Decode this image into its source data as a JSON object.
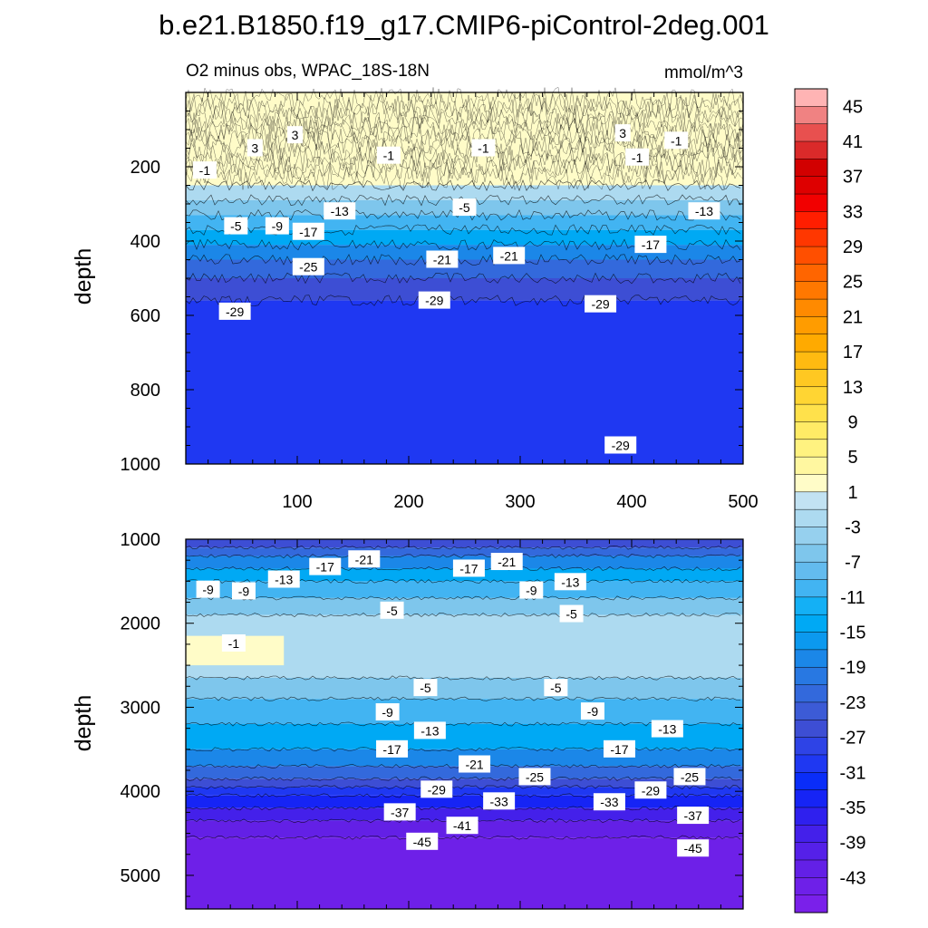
{
  "title": "b.e21.B1850.f19_g17.CMIP6-piControl-2deg.001",
  "chart_data": {
    "type": "heatmap",
    "subtitle_left": "O2 minus obs, WPAC_18S-18N",
    "units": "mmol/m^3",
    "xlabel": "",
    "ylabel": "depth",
    "xlim": [
      0,
      500
    ],
    "x_ticks": [
      100,
      200,
      300,
      400,
      500
    ],
    "panels": [
      {
        "name": "upper",
        "ylim": [
          0,
          1000
        ],
        "y_ticks": [
          200,
          400,
          600,
          800,
          1000
        ],
        "show_x_tick_labels": true,
        "bands": [
          {
            "top": 0,
            "bottom": 250,
            "value": 1
          },
          {
            "top": 250,
            "bottom": 290,
            "value": -3
          },
          {
            "top": 290,
            "bottom": 330,
            "value": -7
          },
          {
            "top": 330,
            "bottom": 370,
            "value": -11
          },
          {
            "top": 370,
            "bottom": 410,
            "value": -15
          },
          {
            "top": 410,
            "bottom": 450,
            "value": -19
          },
          {
            "top": 450,
            "bottom": 500,
            "value": -23
          },
          {
            "top": 500,
            "bottom": 560,
            "value": -27
          },
          {
            "top": 560,
            "bottom": 1000,
            "value": -31
          }
        ],
        "contour_labels": [
          {
            "x": 62,
            "y": 150,
            "text": "3"
          },
          {
            "x": 98,
            "y": 115,
            "text": "3"
          },
          {
            "x": 182,
            "y": 170,
            "text": "-1"
          },
          {
            "x": 267,
            "y": 150,
            "text": "-1"
          },
          {
            "x": 392,
            "y": 110,
            "text": "3"
          },
          {
            "x": 405,
            "y": 175,
            "text": "-1"
          },
          {
            "x": 440,
            "y": 130,
            "text": "-1"
          },
          {
            "x": 17,
            "y": 210,
            "text": "-1"
          },
          {
            "x": 45,
            "y": 360,
            "text": "-5"
          },
          {
            "x": 82,
            "y": 360,
            "text": "-9"
          },
          {
            "x": 110,
            "y": 375,
            "text": "-17"
          },
          {
            "x": 138,
            "y": 320,
            "text": "-13"
          },
          {
            "x": 110,
            "y": 470,
            "text": "-25"
          },
          {
            "x": 230,
            "y": 450,
            "text": "-21"
          },
          {
            "x": 250,
            "y": 310,
            "text": "-5"
          },
          {
            "x": 290,
            "y": 440,
            "text": "-21"
          },
          {
            "x": 372,
            "y": 570,
            "text": "-29"
          },
          {
            "x": 417,
            "y": 410,
            "text": "-17"
          },
          {
            "x": 465,
            "y": 320,
            "text": "-13"
          },
          {
            "x": 390,
            "y": 950,
            "text": "-29"
          },
          {
            "x": 223,
            "y": 560,
            "text": "-29"
          },
          {
            "x": 44,
            "y": 590,
            "text": "-29"
          }
        ]
      },
      {
        "name": "lower",
        "ylim": [
          1000,
          5400
        ],
        "y_ticks": [
          1000,
          2000,
          3000,
          4000,
          5000
        ],
        "show_x_tick_labels": false,
        "bands": [
          {
            "top": 1000,
            "bottom": 1100,
            "value": -27
          },
          {
            "top": 1100,
            "bottom": 1200,
            "value": -23
          },
          {
            "top": 1200,
            "bottom": 1350,
            "value": -19
          },
          {
            "top": 1350,
            "bottom": 1500,
            "value": -15
          },
          {
            "top": 1500,
            "bottom": 1700,
            "value": -11
          },
          {
            "top": 1700,
            "bottom": 1900,
            "value": -7
          },
          {
            "top": 1900,
            "bottom": 2650,
            "value": -3
          },
          {
            "top": 2650,
            "bottom": 2900,
            "value": -7
          },
          {
            "top": 2900,
            "bottom": 3200,
            "value": -11
          },
          {
            "top": 3200,
            "bottom": 3500,
            "value": -15
          },
          {
            "top": 3500,
            "bottom": 3700,
            "value": -19
          },
          {
            "top": 3700,
            "bottom": 3850,
            "value": -23
          },
          {
            "top": 3850,
            "bottom": 3950,
            "value": -27
          },
          {
            "top": 3950,
            "bottom": 4050,
            "value": -31
          },
          {
            "top": 4050,
            "bottom": 4200,
            "value": -35
          },
          {
            "top": 4200,
            "bottom": 4350,
            "value": -39
          },
          {
            "top": 4350,
            "bottom": 4550,
            "value": -43
          },
          {
            "top": 4550,
            "bottom": 5400,
            "value": -45
          }
        ],
        "patches": [
          {
            "x0": 0,
            "x1": 88,
            "top": 2150,
            "bottom": 2500,
            "value": 1
          }
        ],
        "contour_labels": [
          {
            "x": 20,
            "y": 1600,
            "text": "-9"
          },
          {
            "x": 52,
            "y": 1620,
            "text": "-9"
          },
          {
            "x": 88,
            "y": 1480,
            "text": "-13"
          },
          {
            "x": 125,
            "y": 1330,
            "text": "-17"
          },
          {
            "x": 160,
            "y": 1240,
            "text": "-21"
          },
          {
            "x": 254,
            "y": 1350,
            "text": "-17"
          },
          {
            "x": 288,
            "y": 1270,
            "text": "-21"
          },
          {
            "x": 345,
            "y": 1510,
            "text": "-13"
          },
          {
            "x": 310,
            "y": 1610,
            "text": "-9"
          },
          {
            "x": 185,
            "y": 1850,
            "text": "-5"
          },
          {
            "x": 346,
            "y": 1890,
            "text": "-5"
          },
          {
            "x": 43,
            "y": 2240,
            "text": "-1"
          },
          {
            "x": 215,
            "y": 2770,
            "text": "-5"
          },
          {
            "x": 332,
            "y": 2770,
            "text": "-5"
          },
          {
            "x": 181,
            "y": 3060,
            "text": "-9"
          },
          {
            "x": 365,
            "y": 3050,
            "text": "-9"
          },
          {
            "x": 219,
            "y": 3280,
            "text": "-13"
          },
          {
            "x": 432,
            "y": 3260,
            "text": "-13"
          },
          {
            "x": 185,
            "y": 3500,
            "text": "-17"
          },
          {
            "x": 389,
            "y": 3500,
            "text": "-17"
          },
          {
            "x": 259,
            "y": 3680,
            "text": "-21"
          },
          {
            "x": 313,
            "y": 3830,
            "text": "-25"
          },
          {
            "x": 452,
            "y": 3830,
            "text": "-25"
          },
          {
            "x": 225,
            "y": 3980,
            "text": "-29"
          },
          {
            "x": 417,
            "y": 3990,
            "text": "-29"
          },
          {
            "x": 281,
            "y": 4120,
            "text": "-33"
          },
          {
            "x": 380,
            "y": 4130,
            "text": "-33"
          },
          {
            "x": 192,
            "y": 4250,
            "text": "-37"
          },
          {
            "x": 455,
            "y": 4290,
            "text": "-37"
          },
          {
            "x": 248,
            "y": 4410,
            "text": "-41"
          },
          {
            "x": 212,
            "y": 4600,
            "text": "-45"
          },
          {
            "x": 455,
            "y": 4680,
            "text": "-45"
          }
        ]
      }
    ],
    "colorbar": {
      "labels": [
        "45",
        "41",
        "37",
        "33",
        "29",
        "25",
        "21",
        "17",
        "13",
        "9",
        "5",
        "1",
        "-3",
        "-7",
        "-11",
        "-15",
        "-19",
        "-23",
        "-27",
        "-31",
        "-35",
        "-39",
        "-43"
      ],
      "range": [
        -47,
        47
      ],
      "step": 2,
      "colors": [
        "#FFB4B4",
        "#F08282",
        "#E8504F",
        "#DA2A2A",
        "#D20000",
        "#DE0000",
        "#F20000",
        "#FF1E00",
        "#FF3700",
        "#FF4F00",
        "#FF6500",
        "#FF7800",
        "#FF8A00",
        "#FF9C00",
        "#FFAA00",
        "#FFBA11",
        "#FFC822",
        "#FFD533",
        "#FFE14B",
        "#FFEB66",
        "#FFF280",
        "#FFF7A0",
        "#FFFCC8",
        "#C2E2F2",
        "#ADDAF0",
        "#96D0EE",
        "#7EC6EC",
        "#63BBEE",
        "#42B4F2",
        "#14B0F5",
        "#00A9F4",
        "#0C99EE",
        "#1B87E8",
        "#2878E2",
        "#3369DC",
        "#3C5BD6",
        "#3D4ED4",
        "#2E43E6",
        "#1F38F2",
        "#0A2DF8",
        "#1624F5",
        "#2F20EE",
        "#4420EA",
        "#5520E8",
        "#6320E6",
        "#6E20E8",
        "#7A20EA"
      ]
    }
  }
}
